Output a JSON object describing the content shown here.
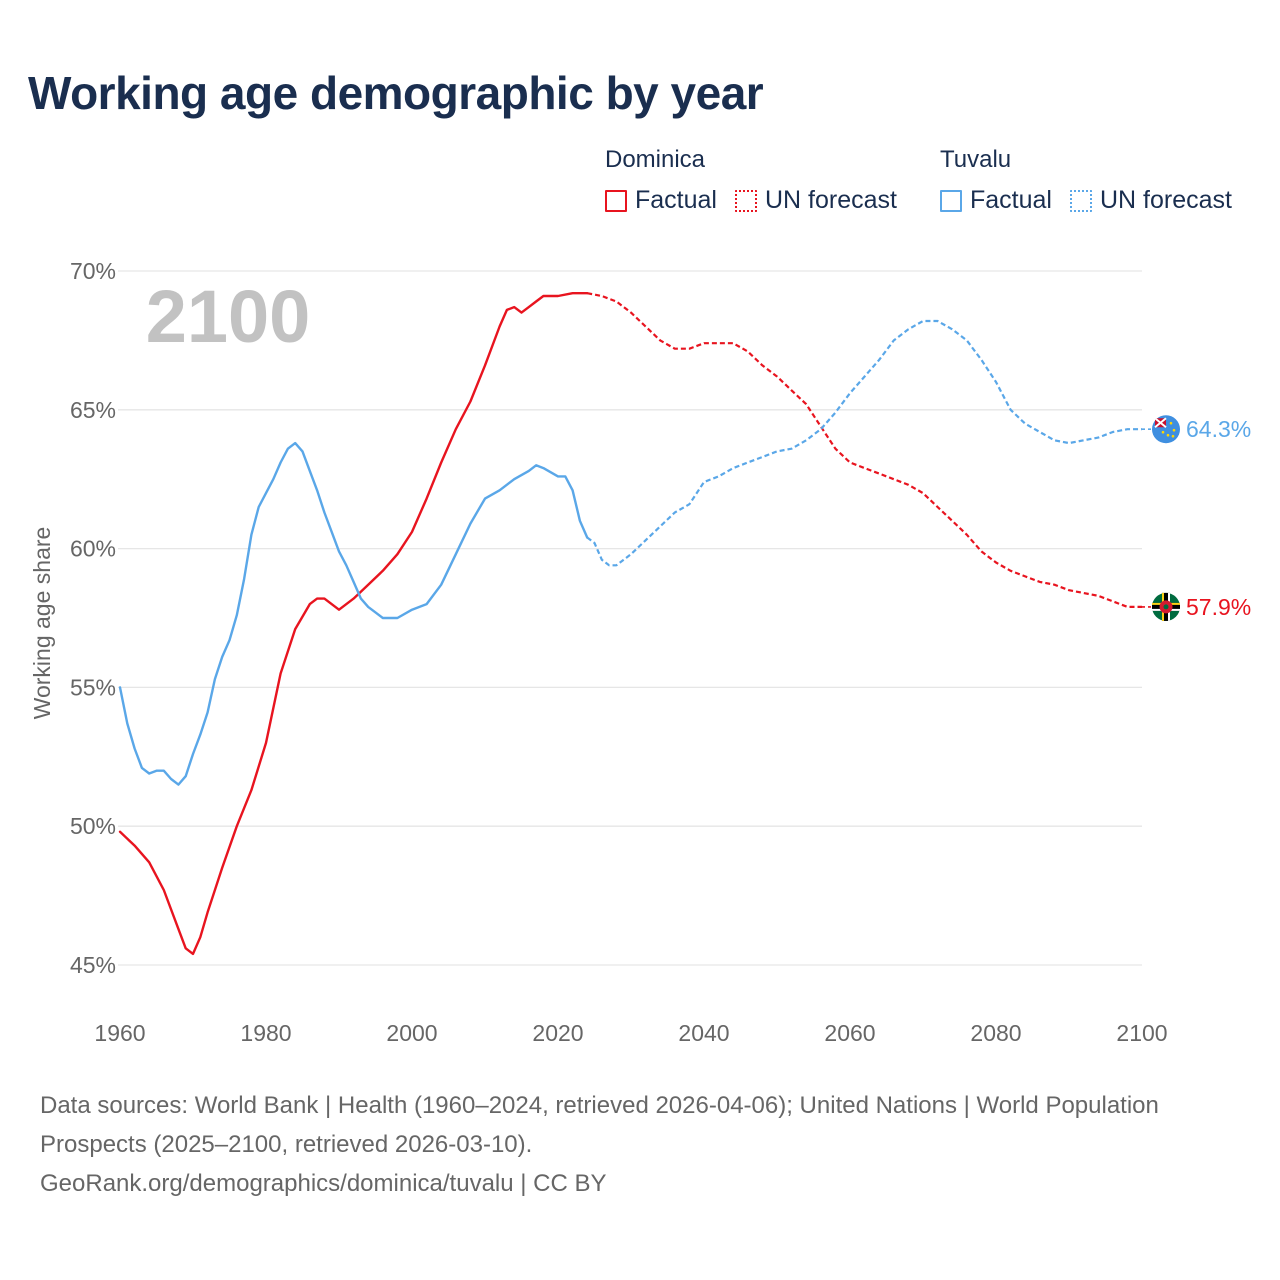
{
  "title": "Working age demographic by year",
  "legend": {
    "groups": [
      {
        "country": "Dominica",
        "color": "#e8141f",
        "factual_label": "Factual",
        "forecast_label": "UN forecast"
      },
      {
        "country": "Tuvalu",
        "color": "#5aa7e8",
        "factual_label": "Factual",
        "forecast_label": "UN forecast"
      }
    ]
  },
  "year_watermark": "2100",
  "footer": {
    "sources": "Data sources: World Bank | Health (1960–2024, retrieved 2026-04-06); United Nations | World Population Prospects (2025–2100, retrieved 2026-03-10).",
    "credit": "GeoRank.org/demographics/dominica/tuvalu | CC BY"
  },
  "chart_data": {
    "type": "line",
    "title": "Working age demographic by year",
    "xlabel": "",
    "ylabel": "Working age share",
    "xlim": [
      1960,
      2100
    ],
    "ylim": [
      45,
      70
    ],
    "x_ticks": [
      1960,
      1980,
      2000,
      2020,
      2040,
      2060,
      2080,
      2100
    ],
    "y_ticks": [
      45,
      50,
      55,
      60,
      65,
      70
    ],
    "y_tick_labels": [
      "45%",
      "50%",
      "55%",
      "60%",
      "65%",
      "70%"
    ],
    "grid": true,
    "factual_range": [
      1960,
      2024
    ],
    "forecast_range": [
      2024,
      2100
    ],
    "series": [
      {
        "name": "Dominica",
        "color": "#e8141f",
        "end_label": "57.9%",
        "flag": "dominica-flag",
        "points": [
          [
            1960,
            49.8
          ],
          [
            1962,
            49.3
          ],
          [
            1964,
            48.7
          ],
          [
            1966,
            47.7
          ],
          [
            1968,
            46.3
          ],
          [
            1969,
            45.6
          ],
          [
            1970,
            45.4
          ],
          [
            1971,
            46
          ],
          [
            1972,
            46.9
          ],
          [
            1974,
            48.5
          ],
          [
            1976,
            50
          ],
          [
            1978,
            51.3
          ],
          [
            1980,
            53
          ],
          [
            1982,
            55.5
          ],
          [
            1984,
            57.1
          ],
          [
            1986,
            58
          ],
          [
            1987,
            58.2
          ],
          [
            1988,
            58.2
          ],
          [
            1990,
            57.8
          ],
          [
            1992,
            58.2
          ],
          [
            1994,
            58.7
          ],
          [
            1996,
            59.2
          ],
          [
            1998,
            59.8
          ],
          [
            2000,
            60.6
          ],
          [
            2002,
            61.8
          ],
          [
            2004,
            63.1
          ],
          [
            2006,
            64.3
          ],
          [
            2008,
            65.3
          ],
          [
            2010,
            66.6
          ],
          [
            2012,
            68
          ],
          [
            2013,
            68.6
          ],
          [
            2014,
            68.7
          ],
          [
            2015,
            68.5
          ],
          [
            2016,
            68.7
          ],
          [
            2017,
            68.9
          ],
          [
            2018,
            69.1
          ],
          [
            2020,
            69.1
          ],
          [
            2022,
            69.2
          ],
          [
            2024,
            69.2
          ],
          [
            2026,
            69.1
          ],
          [
            2028,
            68.9
          ],
          [
            2030,
            68.5
          ],
          [
            2032,
            68
          ],
          [
            2034,
            67.5
          ],
          [
            2036,
            67.2
          ],
          [
            2038,
            67.2
          ],
          [
            2040,
            67.4
          ],
          [
            2042,
            67.4
          ],
          [
            2044,
            67.4
          ],
          [
            2046,
            67.1
          ],
          [
            2048,
            66.6
          ],
          [
            2050,
            66.2
          ],
          [
            2052,
            65.7
          ],
          [
            2054,
            65.2
          ],
          [
            2056,
            64.4
          ],
          [
            2058,
            63.6
          ],
          [
            2060,
            63.1
          ],
          [
            2062,
            62.9
          ],
          [
            2064,
            62.7
          ],
          [
            2066,
            62.5
          ],
          [
            2068,
            62.3
          ],
          [
            2070,
            62
          ],
          [
            2072,
            61.5
          ],
          [
            2074,
            61
          ],
          [
            2076,
            60.5
          ],
          [
            2078,
            59.9
          ],
          [
            2080,
            59.5
          ],
          [
            2082,
            59.2
          ],
          [
            2084,
            59
          ],
          [
            2086,
            58.8
          ],
          [
            2088,
            58.7
          ],
          [
            2090,
            58.5
          ],
          [
            2092,
            58.4
          ],
          [
            2094,
            58.3
          ],
          [
            2096,
            58.1
          ],
          [
            2098,
            57.9
          ],
          [
            2100,
            57.9
          ]
        ]
      },
      {
        "name": "Tuvalu",
        "color": "#5aa7e8",
        "end_label": "64.3%",
        "flag": "tuvalu-flag",
        "points": [
          [
            1960,
            55
          ],
          [
            1961,
            53.7
          ],
          [
            1962,
            52.8
          ],
          [
            1963,
            52.1
          ],
          [
            1964,
            51.9
          ],
          [
            1965,
            52
          ],
          [
            1966,
            52
          ],
          [
            1967,
            51.7
          ],
          [
            1968,
            51.5
          ],
          [
            1969,
            51.8
          ],
          [
            1970,
            52.6
          ],
          [
            1971,
            53.3
          ],
          [
            1972,
            54.1
          ],
          [
            1973,
            55.3
          ],
          [
            1974,
            56.1
          ],
          [
            1975,
            56.7
          ],
          [
            1976,
            57.6
          ],
          [
            1977,
            58.9
          ],
          [
            1978,
            60.5
          ],
          [
            1979,
            61.5
          ],
          [
            1980,
            62
          ],
          [
            1981,
            62.5
          ],
          [
            1982,
            63.1
          ],
          [
            1983,
            63.6
          ],
          [
            1984,
            63.8
          ],
          [
            1985,
            63.5
          ],
          [
            1986,
            62.8
          ],
          [
            1987,
            62.1
          ],
          [
            1988,
            61.3
          ],
          [
            1989,
            60.6
          ],
          [
            1990,
            59.9
          ],
          [
            1991,
            59.4
          ],
          [
            1992,
            58.8
          ],
          [
            1993,
            58.2
          ],
          [
            1994,
            57.9
          ],
          [
            1995,
            57.7
          ],
          [
            1996,
            57.5
          ],
          [
            1998,
            57.5
          ],
          [
            2000,
            57.8
          ],
          [
            2002,
            58
          ],
          [
            2004,
            58.7
          ],
          [
            2006,
            59.8
          ],
          [
            2008,
            60.9
          ],
          [
            2010,
            61.8
          ],
          [
            2012,
            62.1
          ],
          [
            2014,
            62.5
          ],
          [
            2016,
            62.8
          ],
          [
            2017,
            63
          ],
          [
            2018,
            62.9
          ],
          [
            2020,
            62.6
          ],
          [
            2021,
            62.6
          ],
          [
            2022,
            62.1
          ],
          [
            2023,
            61
          ],
          [
            2024,
            60.4
          ],
          [
            2025,
            60.2
          ],
          [
            2026,
            59.6
          ],
          [
            2027,
            59.4
          ],
          [
            2028,
            59.4
          ],
          [
            2030,
            59.8
          ],
          [
            2032,
            60.3
          ],
          [
            2034,
            60.8
          ],
          [
            2036,
            61.3
          ],
          [
            2038,
            61.6
          ],
          [
            2040,
            62.4
          ],
          [
            2042,
            62.6
          ],
          [
            2044,
            62.9
          ],
          [
            2046,
            63.1
          ],
          [
            2048,
            63.3
          ],
          [
            2050,
            63.5
          ],
          [
            2052,
            63.6
          ],
          [
            2054,
            63.9
          ],
          [
            2056,
            64.3
          ],
          [
            2058,
            64.9
          ],
          [
            2060,
            65.6
          ],
          [
            2062,
            66.2
          ],
          [
            2064,
            66.8
          ],
          [
            2066,
            67.5
          ],
          [
            2068,
            67.9
          ],
          [
            2070,
            68.2
          ],
          [
            2072,
            68.2
          ],
          [
            2074,
            67.9
          ],
          [
            2076,
            67.5
          ],
          [
            2078,
            66.8
          ],
          [
            2080,
            66
          ],
          [
            2082,
            65
          ],
          [
            2084,
            64.5
          ],
          [
            2086,
            64.2
          ],
          [
            2088,
            63.9
          ],
          [
            2090,
            63.8
          ],
          [
            2092,
            63.9
          ],
          [
            2094,
            64
          ],
          [
            2096,
            64.2
          ],
          [
            2098,
            64.3
          ],
          [
            2100,
            64.3
          ]
        ]
      }
    ]
  }
}
